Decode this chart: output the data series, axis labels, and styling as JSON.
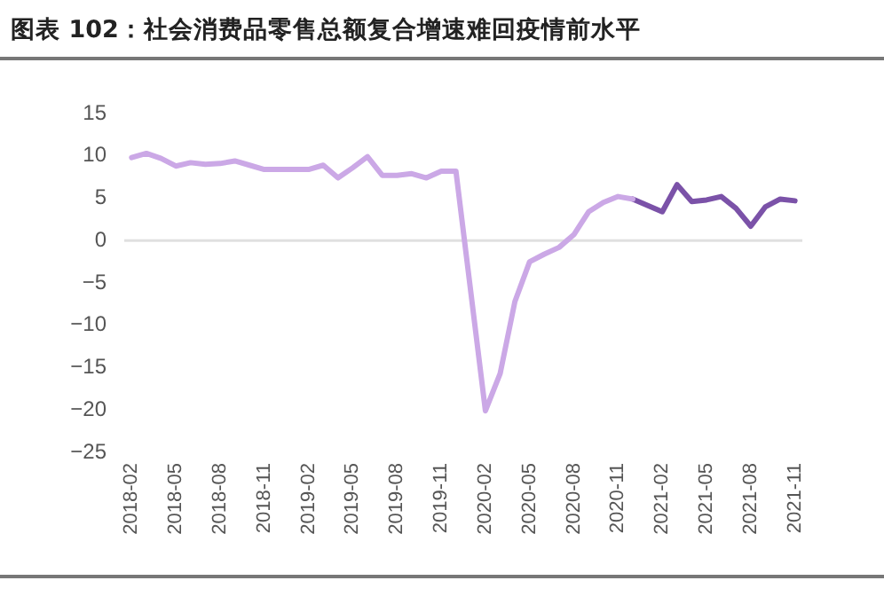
{
  "chart_data": {
    "type": "line",
    "title": "图表 102：社会消费品零售总额复合增速难回疫情前水平",
    "categories": [
      "2018-02",
      null,
      null,
      "2018-05",
      null,
      null,
      "2018-08",
      null,
      null,
      "2018-11",
      null,
      null,
      "2019-02",
      null,
      null,
      "2019-05",
      null,
      null,
      "2019-08",
      null,
      null,
      "2019-11",
      null,
      null,
      "2020-02",
      null,
      null,
      "2020-05",
      null,
      null,
      "2020-08",
      null,
      null,
      "2020-11",
      null,
      null,
      "2021-02",
      null,
      null,
      "2021-05",
      null,
      null,
      "2021-08",
      null,
      null,
      "2021-11"
    ],
    "series": [
      {
        "color": "#cba8e6",
        "values": [
          9.8,
          10.3,
          9.7,
          8.8,
          9.2,
          9.0,
          9.1,
          9.4,
          8.9,
          8.4,
          8.4,
          8.4,
          8.4,
          8.9,
          7.4,
          8.6,
          9.9,
          7.7,
          7.7,
          7.9,
          7.4,
          8.2,
          8.2,
          null,
          -20.1,
          -15.7,
          -7.2,
          -2.5,
          -1.6,
          -0.8,
          0.7,
          3.4,
          4.5,
          5.2,
          4.9,
          null,
          null,
          null,
          null,
          null,
          null,
          null,
          null,
          null,
          null,
          null
        ]
      },
      {
        "color": "#7b52a8",
        "values": [
          null,
          null,
          null,
          null,
          null,
          null,
          null,
          null,
          null,
          null,
          null,
          null,
          null,
          null,
          null,
          null,
          null,
          null,
          null,
          null,
          null,
          null,
          null,
          null,
          null,
          null,
          null,
          null,
          null,
          null,
          null,
          null,
          null,
          null,
          4.9,
          null,
          3.4,
          6.6,
          4.6,
          4.8,
          5.2,
          3.8,
          1.7,
          4.0,
          4.9,
          4.7
        ]
      }
    ],
    "ylim": [
      -25,
      15
    ],
    "yticks": [
      {
        "value": -25,
        "label": "−25"
      },
      {
        "value": -20,
        "label": "−20"
      },
      {
        "value": -15,
        "label": "−15"
      },
      {
        "value": -10,
        "label": "−10"
      },
      {
        "value": -5,
        "label": "−5"
      },
      0,
      5,
      10,
      15
    ],
    "ref_lines": [
      {
        "axis": "y",
        "value": 0,
        "color": "#e0e0e0"
      }
    ],
    "grid": false,
    "legend": false,
    "marker": "none",
    "line_style": "solid"
  }
}
